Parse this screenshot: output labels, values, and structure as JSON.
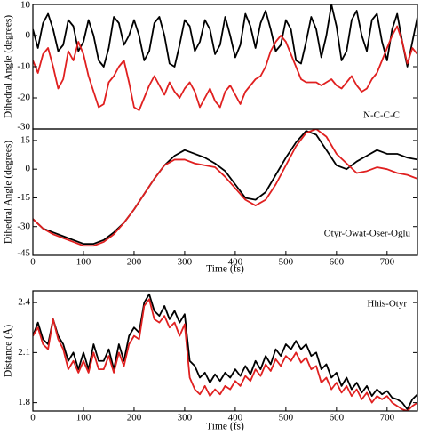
{
  "chart_data": [
    {
      "type": "line",
      "y_label": "Dihedral Angle (degrees)",
      "annotation": "N-C-C-C",
      "xlim": [
        0,
        760
      ],
      "ylim": [
        -30,
        10
      ],
      "yticks": [
        -30,
        -20,
        -10,
        0,
        10
      ],
      "x": [
        0,
        10,
        20,
        30,
        40,
        50,
        60,
        70,
        80,
        90,
        100,
        110,
        120,
        130,
        140,
        150,
        160,
        170,
        180,
        190,
        200,
        210,
        220,
        230,
        240,
        250,
        260,
        270,
        280,
        290,
        300,
        310,
        320,
        330,
        340,
        350,
        360,
        370,
        380,
        390,
        400,
        410,
        420,
        430,
        440,
        450,
        460,
        470,
        480,
        490,
        500,
        510,
        520,
        530,
        540,
        550,
        560,
        570,
        580,
        590,
        600,
        610,
        620,
        630,
        640,
        650,
        660,
        670,
        680,
        690,
        700,
        710,
        720,
        730,
        740,
        750,
        760
      ],
      "series": [
        {
          "color": "#000000",
          "values": [
            2,
            -4,
            4,
            7,
            2,
            -5,
            -3,
            5,
            3,
            -5,
            -2,
            5,
            0,
            -8,
            -10,
            -4,
            6,
            4,
            -3,
            0,
            5,
            0,
            -8,
            -5,
            4,
            6,
            0,
            -9,
            -10,
            -3,
            5,
            3,
            -5,
            -2,
            5,
            2,
            -6,
            -3,
            6,
            0,
            -7,
            -3,
            7,
            3,
            -4,
            4,
            8,
            2,
            -5,
            -3,
            5,
            2,
            -8,
            -9,
            -2,
            6,
            2,
            -7,
            0,
            10,
            3,
            -8,
            -5,
            5,
            8,
            0,
            -5,
            5,
            7,
            -2,
            -8,
            2,
            7,
            -2,
            -10,
            -2,
            6
          ]
        },
        {
          "color": "#e02020",
          "values": [
            -8,
            -12,
            -6,
            -4,
            -10,
            -17,
            -14,
            -5,
            -8,
            -2,
            -6,
            -13,
            -18,
            -23,
            -22,
            -15,
            -13,
            -10,
            -8,
            -15,
            -23,
            -24,
            -20,
            -16,
            -13,
            -16,
            -19,
            -15,
            -18,
            -20,
            -17,
            -15,
            -18,
            -23,
            -20,
            -17,
            -21,
            -23,
            -18,
            -16,
            -19,
            -22,
            -18,
            -16,
            -14,
            -13,
            -10,
            -5,
            -2,
            0,
            -2,
            -6,
            -10,
            -14,
            -15,
            -15,
            -15,
            -16,
            -15,
            -14,
            -16,
            -17,
            -15,
            -13,
            -16,
            -18,
            -17,
            -14,
            -12,
            -8,
            -4,
            0,
            3,
            -2,
            -9,
            -4,
            -6
          ]
        }
      ]
    },
    {
      "type": "line",
      "y_label": "Dihedral Angle (degrees)",
      "x_label": "Time (fs)",
      "annotation": "Otyr-Owat-Oser-Oglu",
      "xlim": [
        0,
        760
      ],
      "ylim": [
        -45,
        21
      ],
      "yticks": [
        -45,
        -30,
        -15,
        0,
        15
      ],
      "xticks": [
        0,
        100,
        200,
        300,
        400,
        500,
        600,
        700
      ],
      "x": [
        0,
        20,
        40,
        60,
        80,
        100,
        120,
        140,
        160,
        180,
        200,
        220,
        240,
        260,
        280,
        300,
        320,
        340,
        360,
        380,
        400,
        420,
        440,
        460,
        480,
        500,
        520,
        540,
        560,
        580,
        600,
        620,
        640,
        660,
        680,
        700,
        720,
        740,
        760
      ],
      "series": [
        {
          "color": "#000000",
          "values": [
            -26,
            -31,
            -33,
            -35,
            -37,
            -39,
            -39,
            -37,
            -33,
            -28,
            -21,
            -13,
            -5,
            2,
            7,
            10,
            8,
            6,
            3,
            -1,
            -8,
            -15,
            -16,
            -12,
            -3,
            6,
            14,
            20,
            18,
            10,
            2,
            0,
            4,
            7,
            10,
            8,
            8,
            6,
            5
          ]
        },
        {
          "color": "#e02020",
          "values": [
            -26,
            -31,
            -34,
            -36,
            -38,
            -40,
            -40,
            -38,
            -34,
            -28,
            -21,
            -13,
            -5,
            2,
            5,
            5,
            3,
            2,
            1,
            -4,
            -10,
            -16,
            -19,
            -16,
            -8,
            2,
            12,
            19,
            21,
            17,
            8,
            3,
            -2,
            -1,
            1,
            0,
            -2,
            -3,
            -5
          ]
        }
      ]
    },
    {
      "type": "line",
      "y_label": "Distance (Å)",
      "x_label": "Time (fs)",
      "annotation": "Hhis-Otyr",
      "xlim": [
        0,
        760
      ],
      "ylim": [
        1.75,
        2.47
      ],
      "yticks": [
        1.8,
        2.1,
        2.4
      ],
      "xticks": [
        0,
        100,
        200,
        300,
        400,
        500,
        600,
        700
      ],
      "x": [
        0,
        10,
        20,
        30,
        40,
        50,
        60,
        70,
        80,
        90,
        100,
        110,
        120,
        130,
        140,
        150,
        160,
        170,
        180,
        190,
        200,
        210,
        220,
        230,
        240,
        250,
        260,
        270,
        280,
        290,
        300,
        310,
        320,
        330,
        340,
        350,
        360,
        370,
        380,
        390,
        400,
        410,
        420,
        430,
        440,
        450,
        460,
        470,
        480,
        490,
        500,
        510,
        520,
        530,
        540,
        550,
        560,
        570,
        580,
        590,
        600,
        610,
        620,
        630,
        640,
        650,
        660,
        670,
        680,
        690,
        700,
        710,
        720,
        730,
        740,
        750,
        760
      ],
      "series": [
        {
          "color": "#000000",
          "values": [
            2.2,
            2.28,
            2.18,
            2.15,
            2.3,
            2.2,
            2.15,
            2.05,
            2.1,
            2.0,
            2.1,
            2.0,
            2.15,
            2.05,
            2.05,
            2.12,
            2.0,
            2.15,
            2.05,
            2.2,
            2.25,
            2.22,
            2.4,
            2.45,
            2.35,
            2.32,
            2.38,
            2.3,
            2.35,
            2.28,
            2.33,
            2.05,
            2.02,
            1.95,
            1.98,
            1.92,
            1.97,
            1.93,
            1.98,
            1.95,
            2.0,
            1.96,
            2.02,
            1.97,
            2.05,
            2.0,
            2.08,
            2.03,
            2.12,
            2.08,
            2.15,
            2.12,
            2.17,
            2.12,
            2.15,
            2.08,
            2.1,
            2.0,
            2.03,
            1.95,
            1.98,
            1.9,
            1.95,
            1.88,
            1.92,
            1.86,
            1.9,
            1.84,
            1.88,
            1.85,
            1.87,
            1.83,
            1.82,
            1.8,
            1.76,
            1.82,
            1.85
          ]
        },
        {
          "color": "#e02020",
          "values": [
            2.2,
            2.25,
            2.15,
            2.12,
            2.3,
            2.18,
            2.12,
            2.0,
            2.05,
            1.98,
            2.05,
            1.98,
            2.1,
            2.0,
            2.0,
            2.08,
            1.98,
            2.1,
            2.02,
            2.15,
            2.2,
            2.18,
            2.38,
            2.42,
            2.3,
            2.28,
            2.32,
            2.25,
            2.28,
            2.2,
            2.27,
            1.95,
            1.88,
            1.85,
            1.9,
            1.84,
            1.88,
            1.85,
            1.9,
            1.88,
            1.93,
            1.9,
            1.96,
            1.93,
            2.0,
            1.96,
            2.03,
            1.99,
            2.06,
            2.02,
            2.08,
            2.05,
            2.1,
            2.04,
            2.07,
            2.0,
            2.02,
            1.92,
            1.95,
            1.88,
            1.92,
            1.86,
            1.9,
            1.84,
            1.88,
            1.82,
            1.86,
            1.8,
            1.84,
            1.82,
            1.84,
            1.8,
            1.78,
            1.76,
            1.75,
            1.78,
            1.8
          ]
        }
      ]
    }
  ]
}
